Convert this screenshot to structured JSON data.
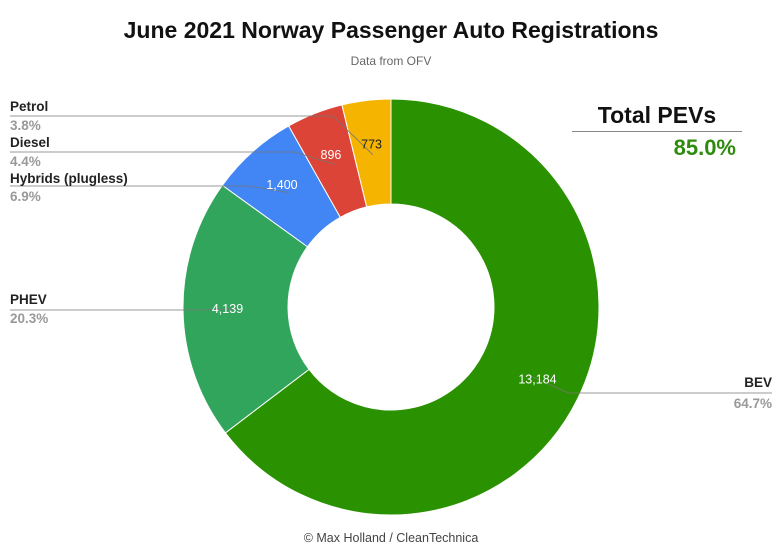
{
  "header": {
    "title": "June 2021 Norway Passenger Auto Registrations",
    "subtitle": "Data from OFV"
  },
  "callout": {
    "label": "Total PEVs",
    "value": "85.0%",
    "value_color": "#2e8b0e"
  },
  "footer": {
    "credit": "© Max Holland / CleanTechnica"
  },
  "chart_data": {
    "type": "pie",
    "variant": "donut",
    "title": "June 2021 Norway Passenger Auto Registrations",
    "subtitle": "Data from OFV",
    "categories": [
      "BEV",
      "PHEV",
      "Hybrids (plugless)",
      "Diesel",
      "Petrol"
    ],
    "values": [
      13184,
      4139,
      1400,
      896,
      773
    ],
    "value_labels": [
      "13,184",
      "4,139",
      "1,400",
      "896",
      "773"
    ],
    "percent_labels": [
      "64.7%",
      "20.3%",
      "6.9%",
      "4.4%",
      "3.8%"
    ],
    "colors": [
      "#2a9200",
      "#32a55c",
      "#4285f4",
      "#db4437",
      "#f4b400"
    ],
    "value_label_colors": [
      "#ffffff",
      "#ffffff",
      "#ffffff",
      "#ffffff",
      "#222222"
    ],
    "legend": "none"
  }
}
